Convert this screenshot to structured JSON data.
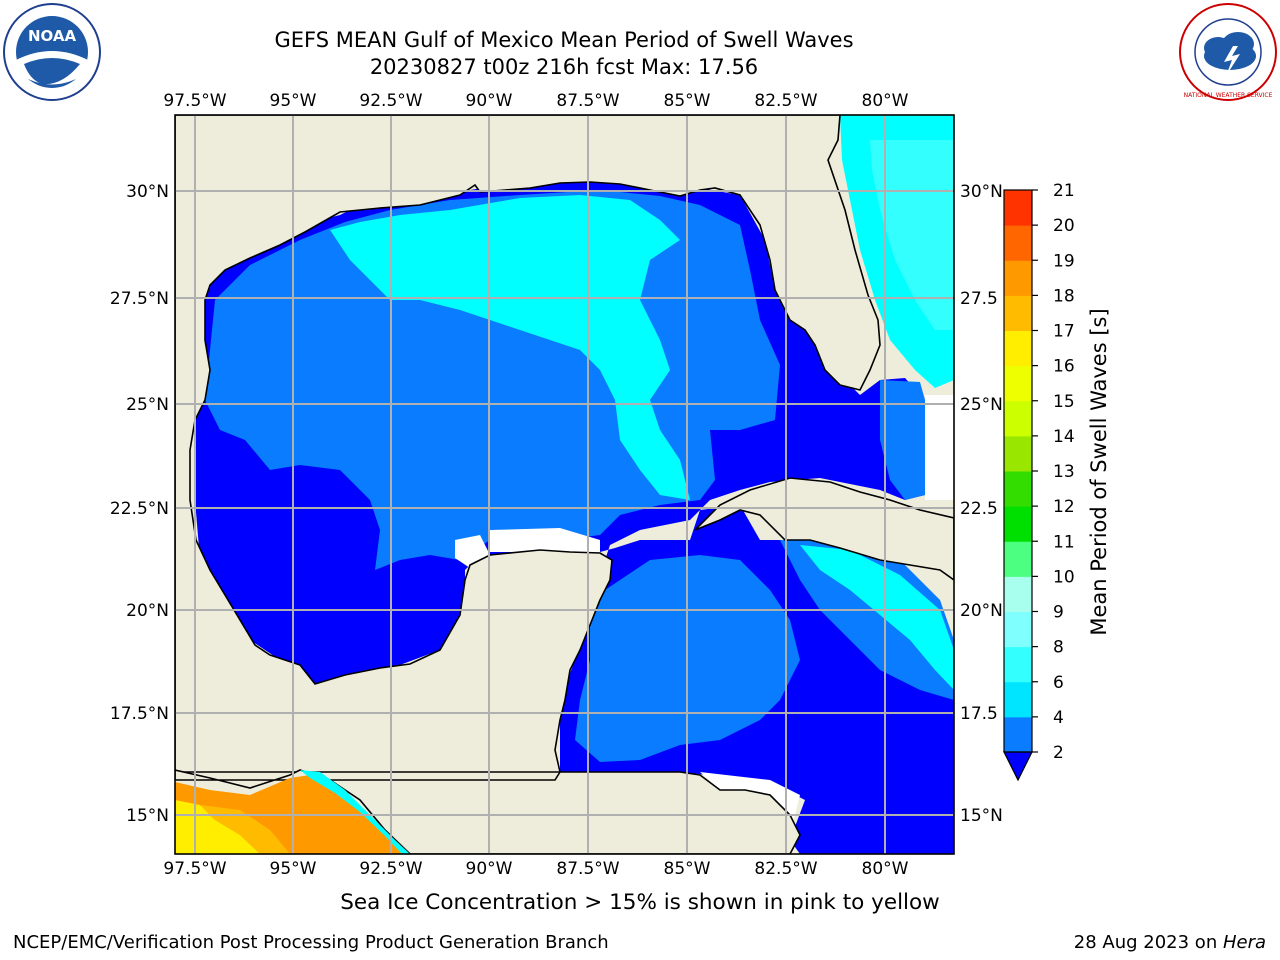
{
  "title_line1": "GEFS MEAN Gulf of Mexico Mean Period of Swell Waves",
  "title_line2": "20230827 t00z 216h fcst   Max: 17.56",
  "lon_labels": [
    "97.5°W",
    "95°W",
    "92.5°W",
    "90°W",
    "87.5°W",
    "85°W",
    "82.5°W",
    "80°W"
  ],
  "lat_labels_left": [
    "30°N",
    "27.5°N",
    "25°N",
    "22.5°N",
    "20°N",
    "17.5°N",
    "15°N"
  ],
  "lat_labels_right": [
    "30°N",
    "27.5",
    "25°N",
    "22.5",
    "20°N",
    "17.5",
    "15°N"
  ],
  "colorbar": {
    "label": "Mean Period of Swell Waves [s]",
    "ticks": [
      "2",
      "4",
      "6",
      "8",
      "9",
      "10",
      "11",
      "12",
      "13",
      "14",
      "15",
      "16",
      "17",
      "18",
      "19",
      "20",
      "21"
    ],
    "colors": [
      "#0a7cff",
      "#00e5ff",
      "#33ffff",
      "#80ffff",
      "#a8ffee",
      "#4dff80",
      "#00e000",
      "#33dd00",
      "#99e600",
      "#ccff00",
      "#eeff00",
      "#ffee00",
      "#ffbb00",
      "#ff9900",
      "#ff6600",
      "#ff3300",
      "#ff0000"
    ],
    "under_color": "#0000ff"
  },
  "field_colors": {
    "land": "#eeeddc",
    "period_lt2": "#0000ff",
    "period_2_4": "#0a7cff",
    "period_4_6": "#00ffff",
    "period_6_8": "#33ffff",
    "ice_orange": "#ff9900",
    "ice_yellow": "#ffee00"
  },
  "note": "Sea Ice Concentration > 15% is shown in pink to yellow",
  "footer_left": "NCEP/EMC/Verification Post Processing Product Generation Branch",
  "footer_right_prefix": "28 Aug 2023 on ",
  "footer_right_host": "Hera",
  "logos": {
    "left_text": "NOAA",
    "right_text": "NATIONAL WEATHER SERVICE"
  }
}
